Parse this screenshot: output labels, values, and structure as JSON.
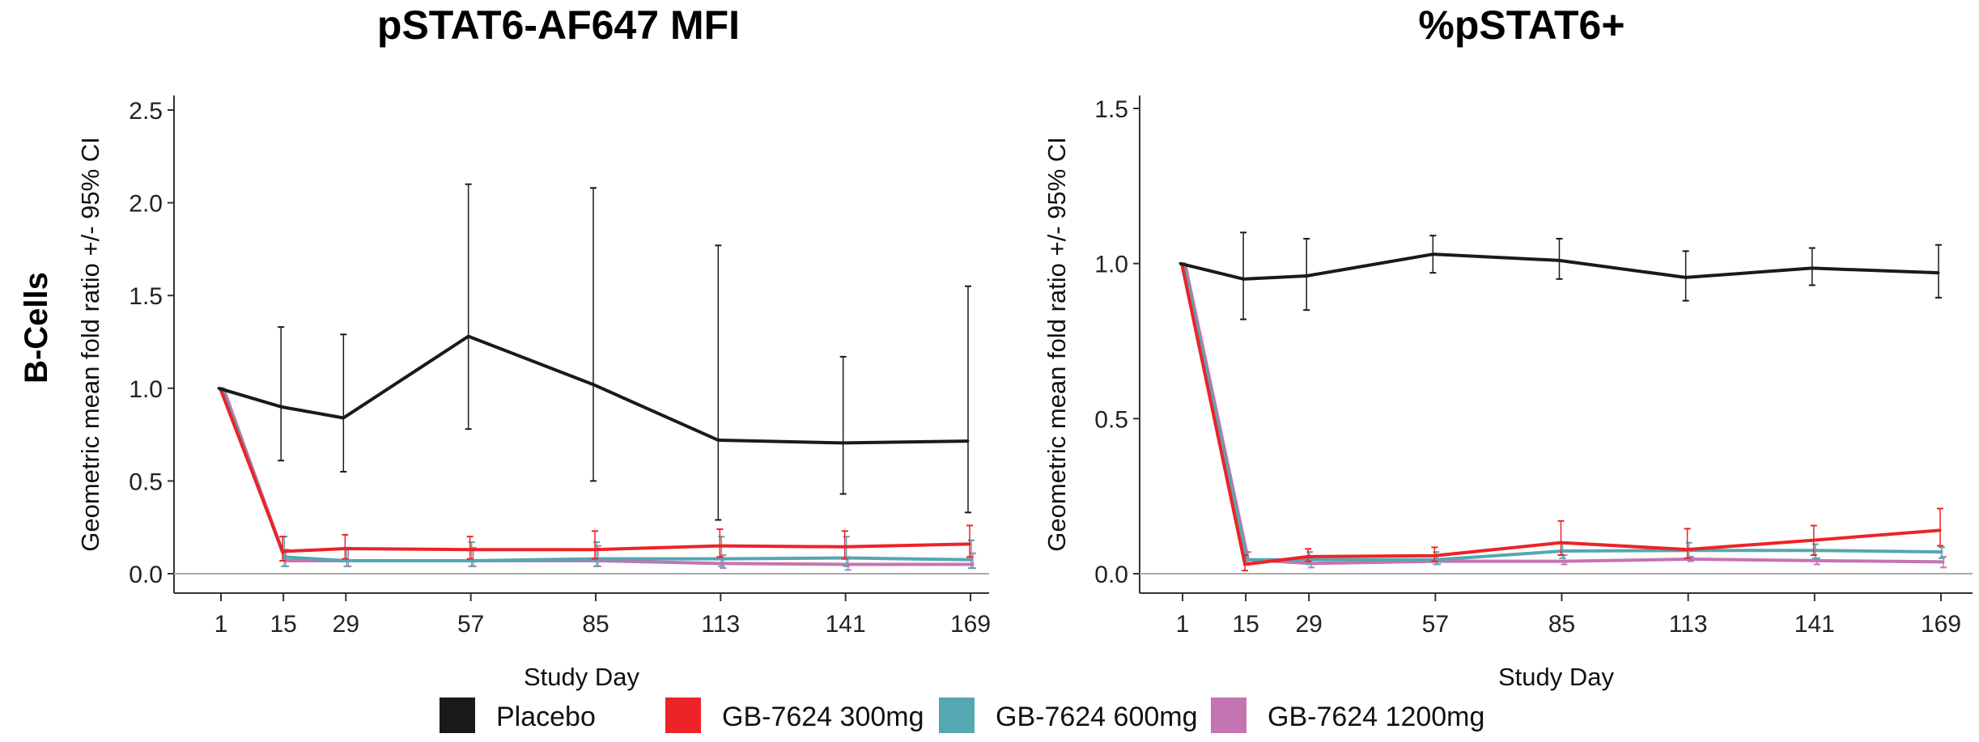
{
  "row_label": "B-Cells",
  "legend": [
    {
      "name": "Placebo",
      "color": "#1a1a1a"
    },
    {
      "name": "GB-7624 300mg",
      "color": "#ed2328"
    },
    {
      "name": "GB-7624 600mg",
      "color": "#55a7b1"
    },
    {
      "name": "GB-7624 1200mg",
      "color": "#c574b2"
    }
  ],
  "chart_data": [
    {
      "type": "line",
      "title": "pSTAT6-AF647 MFI",
      "xlabel": "Study Day",
      "ylabel": "Geometric mean fold ratio +/- 95% CI",
      "x": [
        1,
        15,
        29,
        57,
        85,
        113,
        141,
        169
      ],
      "x_ticks": [
        "1",
        "15",
        "29",
        "57",
        "85",
        "113",
        "141",
        "169"
      ],
      "ylim": [
        0,
        2.5
      ],
      "y_ticks": [
        "0.0",
        "0.5",
        "1.0",
        "1.5",
        "2.0",
        "2.5"
      ],
      "reference_line": 0,
      "grid": false,
      "series": [
        {
          "name": "Placebo",
          "values": [
            1.0,
            0.9,
            0.84,
            1.28,
            1.02,
            0.72,
            0.705,
            0.715
          ],
          "lower": [
            null,
            0.61,
            0.55,
            0.78,
            0.5,
            0.29,
            0.43,
            0.33
          ],
          "upper": [
            null,
            1.33,
            1.29,
            2.1,
            2.08,
            1.77,
            1.17,
            1.55
          ]
        },
        {
          "name": "GB-7624 300mg",
          "values": [
            1.0,
            0.12,
            0.135,
            0.13,
            0.13,
            0.15,
            0.145,
            0.16
          ],
          "lower": [
            null,
            0.07,
            0.08,
            0.08,
            0.08,
            0.09,
            0.08,
            0.09
          ],
          "upper": [
            null,
            0.2,
            0.21,
            0.2,
            0.23,
            0.24,
            0.23,
            0.26
          ]
        },
        {
          "name": "GB-7624 600mg",
          "values": [
            1.0,
            0.09,
            0.07,
            0.07,
            0.08,
            0.08,
            0.085,
            0.075
          ],
          "lower": [
            null,
            0.04,
            0.04,
            0.04,
            0.04,
            0.04,
            0.04,
            0.03
          ],
          "upper": [
            null,
            0.2,
            0.14,
            0.17,
            0.17,
            0.2,
            0.2,
            0.18
          ]
        },
        {
          "name": "GB-7624 1200mg",
          "values": [
            1.0,
            0.07,
            0.07,
            0.07,
            0.07,
            0.055,
            0.05,
            0.05
          ],
          "lower": [
            null,
            0.04,
            0.04,
            0.04,
            0.04,
            0.03,
            0.02,
            0.03
          ],
          "upper": [
            null,
            0.13,
            0.14,
            0.14,
            0.15,
            0.1,
            0.09,
            0.11
          ]
        }
      ]
    },
    {
      "type": "line",
      "title": "%pSTAT6+",
      "xlabel": "Study Day",
      "ylabel": "Geometric mean fold ratio +/- 95% CI",
      "x": [
        1,
        15,
        29,
        57,
        85,
        113,
        141,
        169
      ],
      "x_ticks": [
        "1",
        "15",
        "29",
        "57",
        "85",
        "113",
        "141",
        "169"
      ],
      "ylim": [
        0,
        1.5
      ],
      "y_ticks": [
        "0.0",
        "0.5",
        "1.0",
        "1.5"
      ],
      "reference_line": 0,
      "grid": false,
      "series": [
        {
          "name": "Placebo",
          "values": [
            1.0,
            0.95,
            0.96,
            1.03,
            1.01,
            0.955,
            0.985,
            0.97
          ],
          "lower": [
            null,
            0.82,
            0.85,
            0.97,
            0.95,
            0.88,
            0.93,
            0.89
          ],
          "upper": [
            null,
            1.1,
            1.08,
            1.09,
            1.08,
            1.04,
            1.05,
            1.06
          ]
        },
        {
          "name": "GB-7624 300mg",
          "values": [
            1.0,
            0.03,
            0.055,
            0.058,
            0.1,
            0.078,
            0.108,
            0.14
          ],
          "lower": [
            null,
            0.01,
            0.04,
            0.04,
            0.06,
            0.05,
            0.06,
            0.09
          ],
          "upper": [
            null,
            0.06,
            0.08,
            0.085,
            0.17,
            0.145,
            0.155,
            0.21
          ]
        },
        {
          "name": "GB-7624 600mg",
          "values": [
            1.0,
            0.045,
            0.045,
            0.045,
            0.073,
            0.075,
            0.075,
            0.07
          ],
          "lower": [
            null,
            0.03,
            0.03,
            0.03,
            0.05,
            0.05,
            0.05,
            0.05
          ],
          "upper": [
            null,
            0.07,
            0.07,
            0.07,
            0.1,
            0.1,
            0.095,
            0.085
          ]
        },
        {
          "name": "GB-7624 1200mg",
          "values": [
            1.0,
            0.045,
            0.033,
            0.04,
            0.04,
            0.047,
            0.042,
            0.038
          ],
          "lower": [
            null,
            0.03,
            0.02,
            0.03,
            0.03,
            0.04,
            0.03,
            0.02
          ],
          "upper": [
            null,
            0.07,
            0.05,
            0.06,
            0.06,
            0.055,
            0.05,
            0.055
          ]
        }
      ]
    }
  ]
}
